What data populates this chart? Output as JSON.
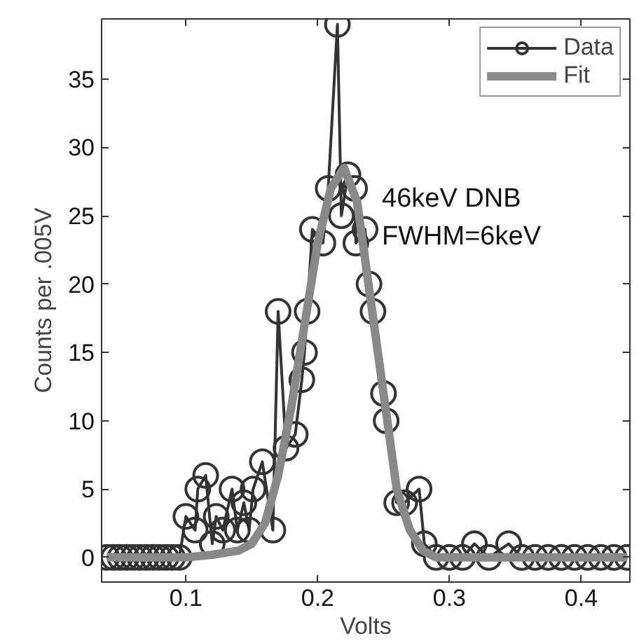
{
  "chart_data": {
    "type": "line",
    "xlabel": "Volts",
    "ylabel": "Counts per .005V",
    "xlim": [
      0.036,
      0.437
    ],
    "ylim": [
      -1.8,
      39.4
    ],
    "xticks": [
      0.1,
      0.2,
      0.3,
      0.4
    ],
    "yticks": [
      0,
      5,
      10,
      15,
      20,
      25,
      30,
      35
    ],
    "grid": false,
    "legend": "top right",
    "annotations": [
      "46keV DNB",
      "FWHM=6keV"
    ],
    "series": [
      {
        "name": "Data",
        "color": "#333333",
        "marker": "circle",
        "x": [
          0.04,
          0.045,
          0.05,
          0.055,
          0.06,
          0.065,
          0.07,
          0.075,
          0.08,
          0.085,
          0.09,
          0.095,
          0.1,
          0.107,
          0.109,
          0.115,
          0.12,
          0.123,
          0.128,
          0.135,
          0.139,
          0.144,
          0.148,
          0.151,
          0.158,
          0.166,
          0.17,
          0.176,
          0.183,
          0.188,
          0.19,
          0.192,
          0.196,
          0.204,
          0.208,
          0.215,
          0.218,
          0.223,
          0.228,
          0.229,
          0.236,
          0.239,
          0.242,
          0.25,
          0.252,
          0.26,
          0.266,
          0.277,
          0.281,
          0.29,
          0.3,
          0.31,
          0.319,
          0.33,
          0.345,
          0.355,
          0.365,
          0.375,
          0.385,
          0.395,
          0.405,
          0.415,
          0.425,
          0.435
        ],
        "values": [
          0,
          0,
          0,
          0,
          0,
          0,
          0,
          0,
          0,
          0,
          0,
          0,
          3,
          2,
          5,
          6,
          1,
          3,
          2,
          5,
          2,
          4,
          2,
          5,
          7,
          2,
          18,
          8,
          9,
          13,
          15,
          18,
          24,
          23,
          27,
          39,
          25,
          28,
          27,
          23,
          24,
          20,
          18,
          12,
          10,
          4,
          4,
          5,
          1,
          0,
          0,
          0,
          1,
          0,
          1,
          0,
          0,
          0,
          0,
          0,
          0,
          0,
          0,
          0
        ]
      },
      {
        "name": "Fit",
        "color": "#888888",
        "marker": "none",
        "x": [
          0.04,
          0.1,
          0.12,
          0.14,
          0.15,
          0.16,
          0.17,
          0.18,
          0.19,
          0.2,
          0.21,
          0.22,
          0.23,
          0.24,
          0.25,
          0.26,
          0.27,
          0.28,
          0.29,
          0.3,
          0.435
        ],
        "values": [
          0,
          0,
          0.2,
          0.5,
          1,
          2.5,
          6,
          11,
          17,
          23,
          27,
          28.5,
          26,
          19,
          12,
          5,
          2,
          0.5,
          0,
          0,
          0
        ]
      }
    ]
  }
}
